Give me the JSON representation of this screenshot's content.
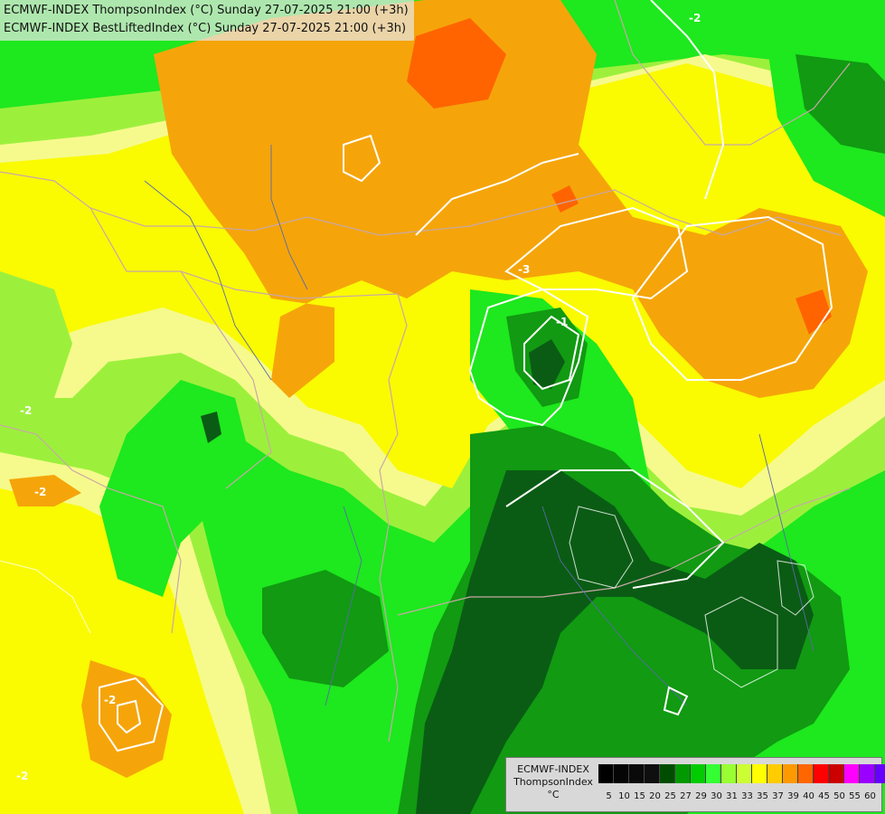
{
  "header": {
    "line1": "ECMWF-INDEX ThompsonIndex (°C) Sunday 27-07-2025 21:00 (+3h)",
    "line2": "ECMWF-INDEX BestLiftedIndex (°C) Sunday 27-07-2025 21:00 (+3h)"
  },
  "legend": {
    "title_line1": "ECMWF-INDEX",
    "title_line2": "ThompsonIndex",
    "title_line3": "°C",
    "levels": [
      "5",
      "10",
      "15",
      "20",
      "25",
      "27",
      "29",
      "30",
      "31",
      "33",
      "35",
      "37",
      "39",
      "40",
      "45",
      "50",
      "55",
      "60"
    ],
    "colors": [
      "#000000",
      "#050505",
      "#0a0a0a",
      "#0f0f0f",
      "#004d00",
      "#009900",
      "#00cc00",
      "#33ff33",
      "#99ff33",
      "#ccff33",
      "#ffff00",
      "#ffcc00",
      "#ff9900",
      "#ff6600",
      "#ff0000",
      "#cc0000",
      "#ff00ff",
      "#9900ff",
      "#6600ff",
      "#0000ff"
    ]
  },
  "contour_labels": [
    "-2",
    "-2",
    "-2",
    "-2",
    "-2",
    "-3",
    "-1"
  ],
  "palette": {
    "dark_green": "#0a5c14",
    "mid_green": "#119a12",
    "green": "#1ee81e",
    "light_green": "#9cf03c",
    "pale_yellow": "#f6fa8c",
    "yellow": "#fafa00",
    "orange": "#f5a50a",
    "red_orange": "#ff6400"
  }
}
